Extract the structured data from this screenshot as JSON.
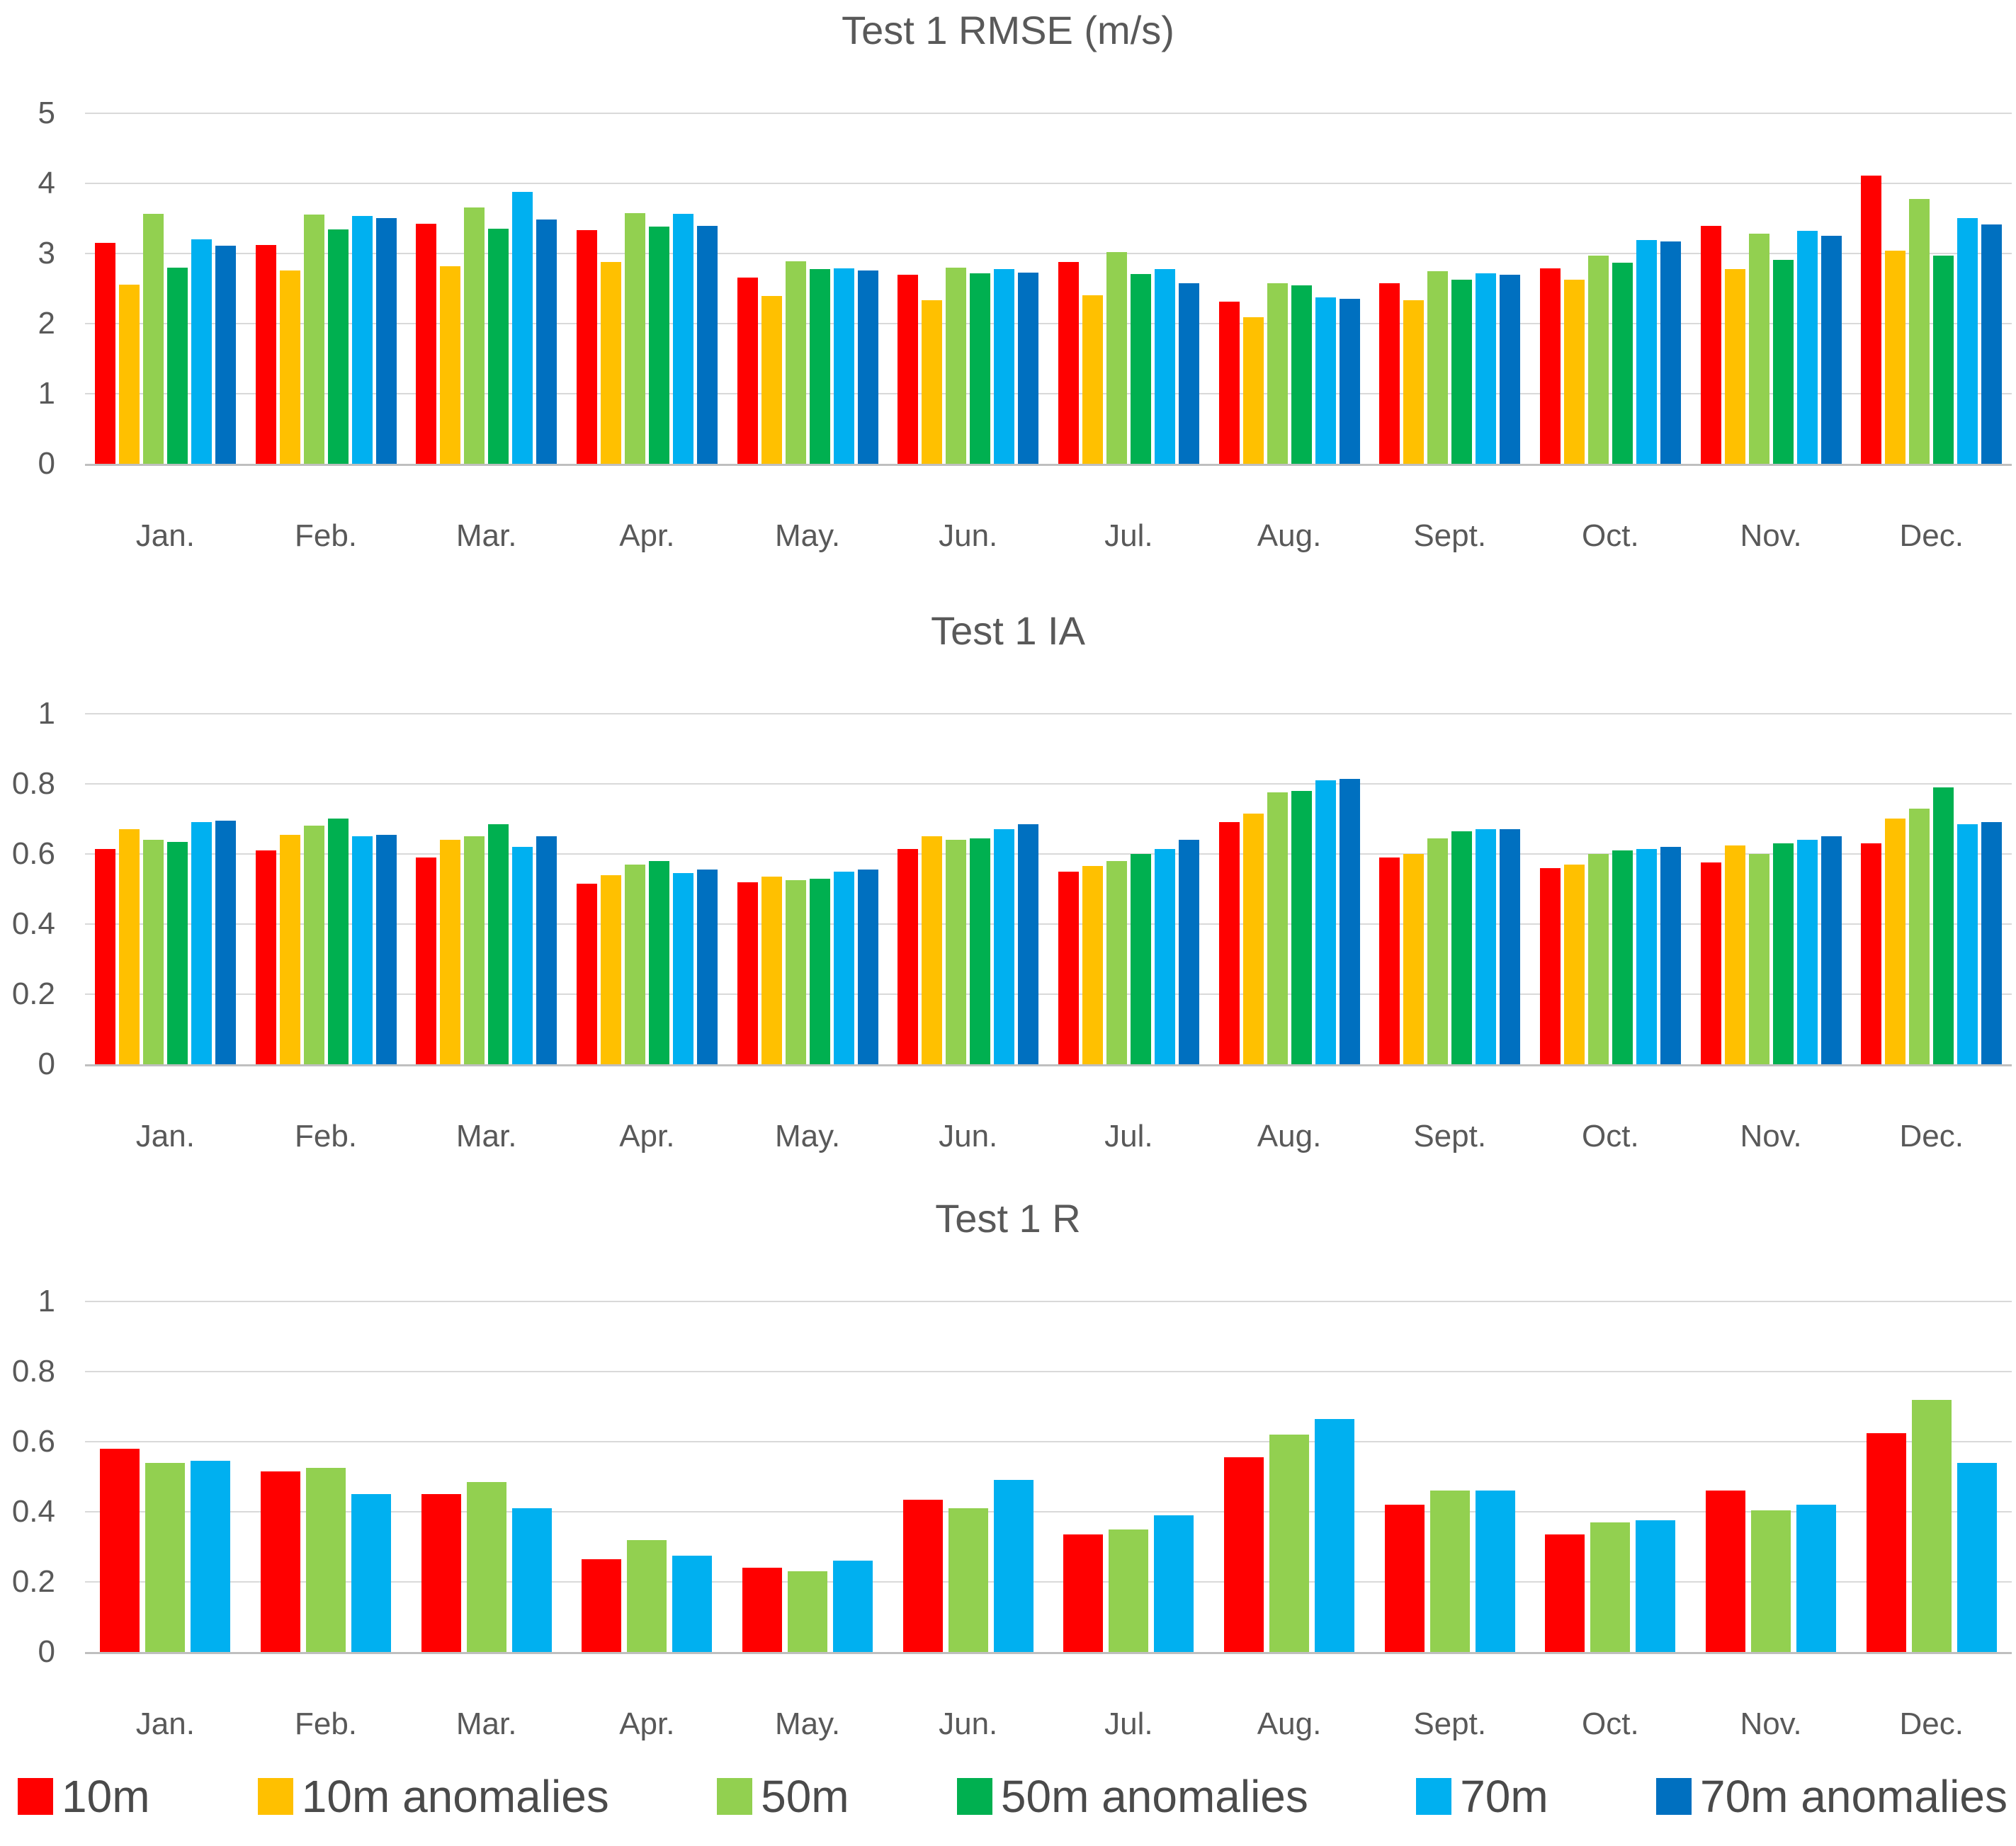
{
  "figure": {
    "background": "#FFFFFF",
    "text_color": "#595959",
    "gridline_color": "#D9D9D9",
    "axis_line_color": "#BFBFBF"
  },
  "chart_data": [
    {
      "type": "bar",
      "title": "Test 1 RMSE (m/s)",
      "xlabel": "",
      "ylabel": "",
      "ylim": [
        0,
        5
      ],
      "yticks": [
        "5",
        "4",
        "3",
        "2",
        "1",
        "0"
      ],
      "grid": true,
      "categories": [
        "Jan.",
        "Feb.",
        "Mar.",
        "Apr.",
        "May.",
        "Jun.",
        "Jul.",
        "Aug.",
        "Sept.",
        "Oct.",
        "Nov.",
        "Dec."
      ],
      "series": [
        {
          "name": "10m",
          "color": "#FF0000",
          "values": [
            3.15,
            3.12,
            3.42,
            3.33,
            2.66,
            2.7,
            2.88,
            2.31,
            2.58,
            2.79,
            3.39,
            4.11
          ]
        },
        {
          "name": "10m anomalies",
          "color": "#FFC000",
          "values": [
            2.56,
            2.76,
            2.82,
            2.88,
            2.39,
            2.33,
            2.4,
            2.09,
            2.33,
            2.63,
            2.78,
            3.04
          ]
        },
        {
          "name": "50m",
          "color": "#92D050",
          "values": [
            3.57,
            3.56,
            3.66,
            3.58,
            2.89,
            2.8,
            3.02,
            2.58,
            2.75,
            2.97,
            3.28,
            3.78
          ]
        },
        {
          "name": "50m anomalies",
          "color": "#00B050",
          "values": [
            2.8,
            3.34,
            3.35,
            3.38,
            2.78,
            2.72,
            2.71,
            2.55,
            2.63,
            2.87,
            2.91,
            2.97
          ]
        },
        {
          "name": "70m",
          "color": "#00B0F0",
          "values": [
            3.2,
            3.54,
            3.88,
            3.57,
            2.79,
            2.78,
            2.78,
            2.37,
            2.72,
            3.19,
            3.32,
            3.51
          ]
        },
        {
          "name": "70m anomalies",
          "color": "#0070C0",
          "values": [
            3.11,
            3.5,
            3.48,
            3.39,
            2.76,
            2.73,
            2.58,
            2.35,
            2.7,
            3.17,
            3.25,
            3.41
          ]
        }
      ]
    },
    {
      "type": "bar",
      "title": "Test 1 IA",
      "xlabel": "",
      "ylabel": "",
      "ylim": [
        0,
        1
      ],
      "yticks": [
        "1",
        "0.8",
        "0.6",
        "0.4",
        "0.2",
        "0"
      ],
      "grid": true,
      "categories": [
        "Jan.",
        "Feb.",
        "Mar.",
        "Apr.",
        "May.",
        "Jun.",
        "Jul.",
        "Aug.",
        "Sept.",
        "Oct.",
        "Nov.",
        "Dec."
      ],
      "series": [
        {
          "name": "10m",
          "color": "#FF0000",
          "values": [
            0.615,
            0.61,
            0.59,
            0.515,
            0.52,
            0.615,
            0.55,
            0.69,
            0.59,
            0.56,
            0.575,
            0.63
          ]
        },
        {
          "name": "10m anomalies",
          "color": "#FFC000",
          "values": [
            0.67,
            0.655,
            0.64,
            0.54,
            0.535,
            0.65,
            0.565,
            0.715,
            0.6,
            0.57,
            0.625,
            0.7
          ]
        },
        {
          "name": "50m",
          "color": "#92D050",
          "values": [
            0.64,
            0.68,
            0.65,
            0.57,
            0.525,
            0.64,
            0.58,
            0.775,
            0.645,
            0.6,
            0.6,
            0.73
          ]
        },
        {
          "name": "50m anomalies",
          "color": "#00B050",
          "values": [
            0.635,
            0.7,
            0.685,
            0.58,
            0.53,
            0.645,
            0.6,
            0.78,
            0.665,
            0.61,
            0.63,
            0.79
          ]
        },
        {
          "name": "70m",
          "color": "#00B0F0",
          "values": [
            0.69,
            0.65,
            0.62,
            0.545,
            0.55,
            0.67,
            0.615,
            0.81,
            0.67,
            0.615,
            0.64,
            0.685
          ]
        },
        {
          "name": "70m anomalies",
          "color": "#0070C0",
          "values": [
            0.695,
            0.655,
            0.65,
            0.555,
            0.555,
            0.685,
            0.64,
            0.815,
            0.67,
            0.62,
            0.65,
            0.69
          ]
        }
      ]
    },
    {
      "type": "bar",
      "title": "Test 1 R",
      "xlabel": "",
      "ylabel": "",
      "ylim": [
        0,
        1
      ],
      "yticks": [
        "1",
        "0.8",
        "0.6",
        "0.4",
        "0.2",
        "0"
      ],
      "grid": true,
      "categories": [
        "Jan.",
        "Feb.",
        "Mar.",
        "Apr.",
        "May.",
        "Jun.",
        "Jul.",
        "Aug.",
        "Sept.",
        "Oct.",
        "Nov.",
        "Dec."
      ],
      "series": [
        {
          "name": "10m",
          "color": "#FF0000",
          "values": [
            0.58,
            0.515,
            0.45,
            0.265,
            0.24,
            0.435,
            0.335,
            0.555,
            0.42,
            0.335,
            0.46,
            0.625
          ]
        },
        {
          "name": "50m",
          "color": "#92D050",
          "values": [
            0.54,
            0.525,
            0.485,
            0.32,
            0.23,
            0.41,
            0.35,
            0.62,
            0.46,
            0.37,
            0.405,
            0.72
          ]
        },
        {
          "name": "70m",
          "color": "#00B0F0",
          "values": [
            0.545,
            0.45,
            0.41,
            0.275,
            0.26,
            0.49,
            0.39,
            0.665,
            0.46,
            0.375,
            0.42,
            0.54
          ]
        }
      ]
    }
  ],
  "legend": {
    "items": [
      {
        "label": "10m",
        "color": "#FF0000"
      },
      {
        "label": "10m anomalies",
        "color": "#FFC000"
      },
      {
        "label": "50m",
        "color": "#92D050"
      },
      {
        "label": "50m anomalies",
        "color": "#00B050"
      },
      {
        "label": "70m",
        "color": "#00B0F0"
      },
      {
        "label": "70m anomalies",
        "color": "#0070C0"
      }
    ]
  }
}
